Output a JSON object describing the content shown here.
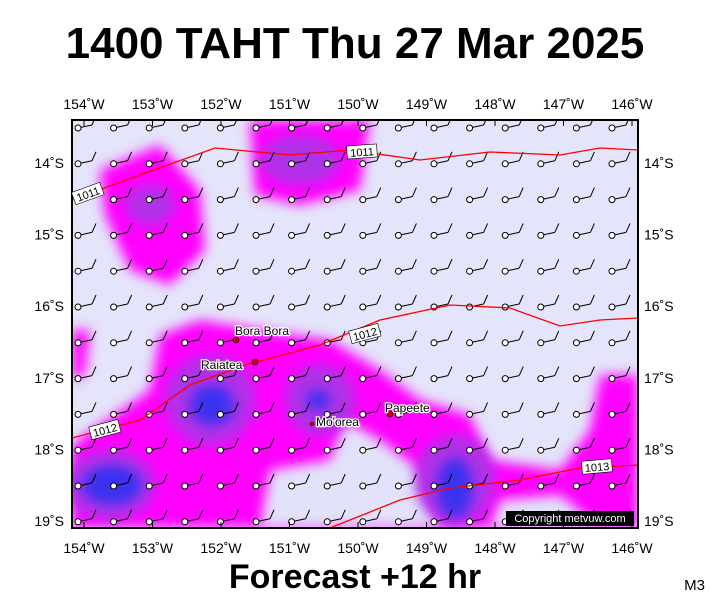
{
  "header": {
    "title": "1400 TAHT Thu 27 Mar 2025"
  },
  "map": {
    "lon_labels": [
      "154˚W",
      "153˚W",
      "152˚W",
      "151˚W",
      "150˚W",
      "149˚W",
      "148˚W",
      "147˚W",
      "146˚W"
    ],
    "lat_labels": [
      "14˚S",
      "15˚S",
      "16˚S",
      "17˚S",
      "18˚S",
      "19˚S"
    ],
    "isobars": [
      {
        "label": "1011"
      },
      {
        "label": "1011"
      },
      {
        "label": "1012"
      },
      {
        "label": "1012"
      },
      {
        "label": "1013"
      }
    ],
    "places": [
      {
        "name": "Bora Bora"
      },
      {
        "name": "Raiatea"
      },
      {
        "name": "Mo'orea"
      },
      {
        "name": "Papeete"
      }
    ],
    "copyright": "Copyright metvuw.com"
  },
  "footer": {
    "forecast": "Forecast +12 hr",
    "model": "M3"
  }
}
